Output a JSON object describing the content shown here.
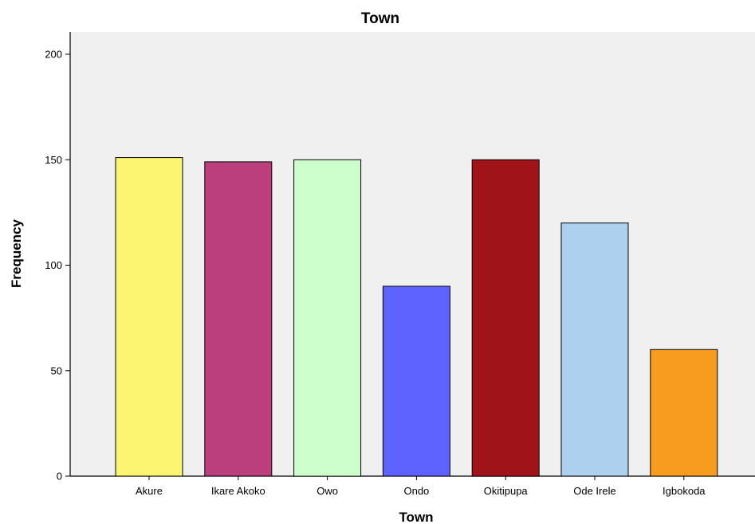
{
  "chart_data": {
    "type": "bar",
    "title": "Town",
    "xlabel": "Town",
    "ylabel": "Frequency",
    "categories": [
      "Akure",
      "Ikare Akoko",
      "Owo",
      "Ondo",
      "Okitipupa",
      "Ode Irele",
      "Igbokoda"
    ],
    "values": [
      151,
      149,
      150,
      90,
      150,
      120,
      60
    ],
    "bar_colors": [
      "#fcf572",
      "#bb3f7d",
      "#cdffcc",
      "#5e62ff",
      "#a01419",
      "#add0ee",
      "#f89c1f"
    ],
    "ylim": [
      0,
      210
    ],
    "yticks": [
      0,
      50,
      100,
      150,
      200
    ],
    "grid": false,
    "legend": "none",
    "plot_background": "#f0f0f0"
  }
}
